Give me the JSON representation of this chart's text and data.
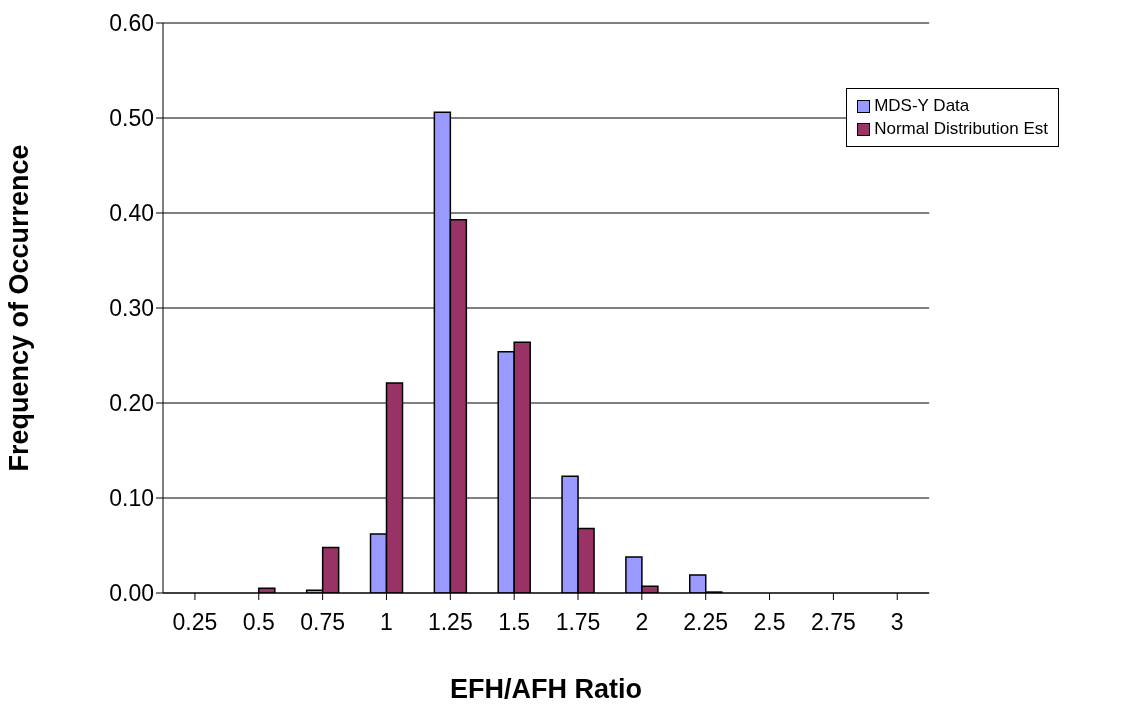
{
  "chart_data": {
    "type": "bar",
    "xlabel": "EFH/AFH Ratio",
    "ylabel": "Frequency of Occurrence",
    "categories": [
      "0.25",
      "0.5",
      "0.75",
      "1",
      "1.25",
      "1.5",
      "1.75",
      "2",
      "2.25",
      "2.5",
      "2.75",
      "3"
    ],
    "series": [
      {
        "name": "MDS-Y Data",
        "color": "#9999ff",
        "values": [
          0,
          0,
          0.003,
          0.062,
          0.506,
          0.254,
          0.123,
          0.038,
          0.019,
          0,
          0,
          0
        ]
      },
      {
        "name": "Normal Distribution Est",
        "color": "#993366",
        "values": [
          0,
          0.005,
          0.048,
          0.221,
          0.393,
          0.264,
          0.068,
          0.007,
          0.001,
          0,
          0,
          0
        ]
      }
    ],
    "ylim": [
      0,
      0.6
    ],
    "yticks": [
      {
        "value": 0,
        "label": "0.00"
      },
      {
        "value": 0.1,
        "label": "0.10"
      },
      {
        "value": 0.2,
        "label": "0.20"
      },
      {
        "value": 0.3,
        "label": "0.30"
      },
      {
        "value": 0.4,
        "label": "0.40"
      },
      {
        "value": 0.5,
        "label": "0.50"
      },
      {
        "value": 0.6,
        "label": "0.60"
      }
    ],
    "grid": "y",
    "legend": "top right"
  }
}
